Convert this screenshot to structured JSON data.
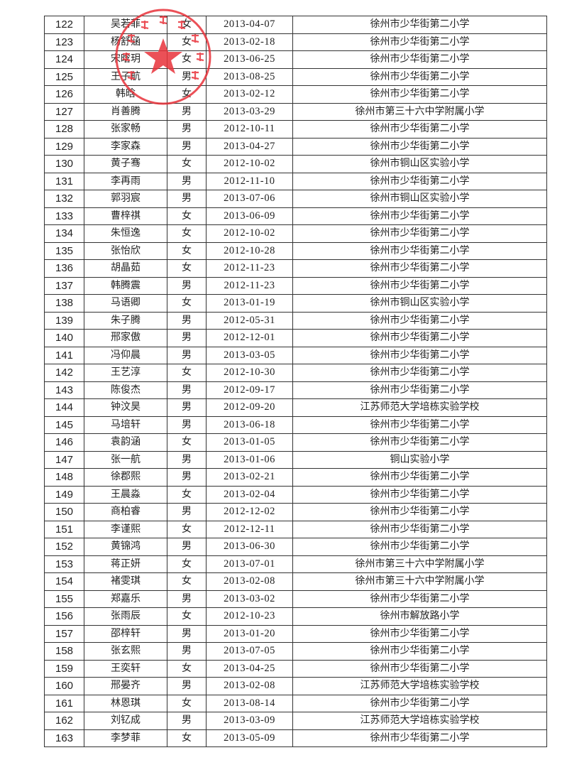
{
  "stamp": {
    "text": "徐州市第三十六中学",
    "color": "#e8323a"
  },
  "rows": [
    [
      "122",
      "吴若菲",
      "女",
      "2013-04-07",
      "徐州市少华街第二小学"
    ],
    [
      "123",
      "杨舒涵",
      "女",
      "2013-02-18",
      "徐州市少华街第二小学"
    ],
    [
      "124",
      "宋晗玥",
      "女",
      "2013-06-25",
      "徐州市少华街第二小学"
    ],
    [
      "125",
      "王子航",
      "男",
      "2013-08-25",
      "徐州市少华街第二小学"
    ],
    [
      "126",
      "韩晗",
      "女",
      "2013-02-12",
      "徐州市少华街第二小学"
    ],
    [
      "127",
      "肖善腾",
      "男",
      "2013-03-29",
      "徐州市第三十六中学附属小学"
    ],
    [
      "128",
      "张家畅",
      "男",
      "2012-10-11",
      "徐州市少华街第二小学"
    ],
    [
      "129",
      "李家森",
      "男",
      "2013-04-27",
      "徐州市少华街第二小学"
    ],
    [
      "130",
      "黄子骞",
      "女",
      "2012-10-02",
      "徐州市铜山区实验小学"
    ],
    [
      "131",
      "李再雨",
      "男",
      "2012-11-10",
      "徐州市少华街第二小学"
    ],
    [
      "132",
      "郭羽宸",
      "男",
      "2013-07-06",
      "徐州市铜山区实验小学"
    ],
    [
      "133",
      "曹梓祺",
      "女",
      "2013-06-09",
      "徐州市少华街第二小学"
    ],
    [
      "134",
      "朱恒逸",
      "女",
      "2012-10-02",
      "徐州市少华街第二小学"
    ],
    [
      "135",
      "张怡欣",
      "女",
      "2012-10-28",
      "徐州市少华街第二小学"
    ],
    [
      "136",
      "胡晶茹",
      "女",
      "2012-11-23",
      "徐州市少华街第二小学"
    ],
    [
      "137",
      "韩腾震",
      "男",
      "2012-11-23",
      "徐州市少华街第二小学"
    ],
    [
      "138",
      "马语卿",
      "女",
      "2013-01-19",
      "徐州市铜山区实验小学"
    ],
    [
      "139",
      "朱子腾",
      "男",
      "2012-05-31",
      "徐州市少华街第二小学"
    ],
    [
      "140",
      "邢家傲",
      "男",
      "2012-12-01",
      "徐州市少华街第二小学"
    ],
    [
      "141",
      "冯仰晨",
      "男",
      "2013-03-05",
      "徐州市少华街第二小学"
    ],
    [
      "142",
      "王艺淳",
      "女",
      "2012-10-30",
      "徐州市少华街第二小学"
    ],
    [
      "143",
      "陈俊杰",
      "男",
      "2012-09-17",
      "徐州市少华街第二小学"
    ],
    [
      "144",
      "钟汶昊",
      "男",
      "2012-09-20",
      "江苏师范大学培栋实验学校"
    ],
    [
      "145",
      "马培轩",
      "男",
      "2013-06-18",
      "徐州市少华街第二小学"
    ],
    [
      "146",
      "袁韵涵",
      "女",
      "2013-01-05",
      "徐州市少华街第二小学"
    ],
    [
      "147",
      "张一航",
      "男",
      "2013-01-06",
      "铜山实验小学"
    ],
    [
      "148",
      "徐郡熙",
      "男",
      "2013-02-21",
      "徐州市少华街第二小学"
    ],
    [
      "149",
      "王晨淼",
      "女",
      "2013-02-04",
      "徐州市少华街第二小学"
    ],
    [
      "150",
      "商柏睿",
      "男",
      "2012-12-02",
      "徐州市少华街第二小学"
    ],
    [
      "151",
      "李谨熙",
      "女",
      "2012-12-11",
      "徐州市少华街第二小学"
    ],
    [
      "152",
      "黄锦鸿",
      "男",
      "2013-06-30",
      "徐州市少华街第二小学"
    ],
    [
      "153",
      "蒋正妍",
      "女",
      "2013-07-01",
      "徐州市第三十六中学附属小学"
    ],
    [
      "154",
      "褚雯琪",
      "女",
      "2013-02-08",
      "徐州市第三十六中学附属小学"
    ],
    [
      "155",
      "郑嘉乐",
      "男",
      "2013-03-02",
      "徐州市少华街第二小学"
    ],
    [
      "156",
      "张雨辰",
      "女",
      "2012-10-23",
      "徐州市解放路小学"
    ],
    [
      "157",
      "邵梓轩",
      "男",
      "2013-01-20",
      "徐州市少华街第二小学"
    ],
    [
      "158",
      "张玄熙",
      "男",
      "2013-07-05",
      "徐州市少华街第二小学"
    ],
    [
      "159",
      "王奕轩",
      "女",
      "2013-04-25",
      "徐州市少华街第二小学"
    ],
    [
      "160",
      "邢晏齐",
      "男",
      "2013-02-08",
      "江苏师范大学培栋实验学校"
    ],
    [
      "161",
      "林恩琪",
      "女",
      "2013-08-14",
      "徐州市少华街第二小学"
    ],
    [
      "162",
      "刘钇成",
      "男",
      "2013-03-09",
      "江苏师范大学培栋实验学校"
    ],
    [
      "163",
      "李梦菲",
      "女",
      "2013-05-09",
      "徐州市少华街第二小学"
    ]
  ]
}
